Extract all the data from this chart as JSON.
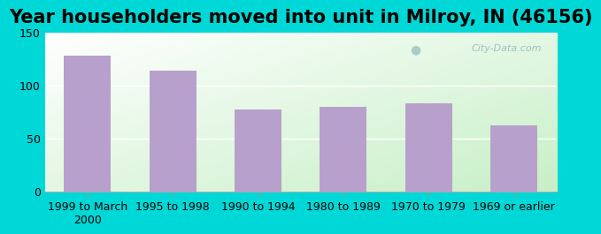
{
  "title": "Year householders moved into unit in Milroy, IN (46156)",
  "categories": [
    "1999 to March\n2000",
    "1995 to 1998",
    "1990 to 1994",
    "1980 to 1989",
    "1970 to 1979",
    "1969 or earlier"
  ],
  "values": [
    128,
    114,
    77,
    80,
    83,
    62
  ],
  "bar_color": "#b8a0cc",
  "ylim": [
    0,
    150
  ],
  "yticks": [
    0,
    50,
    100,
    150
  ],
  "background_outer": "#00d8d8",
  "background_top_left": "#ffffff",
  "background_bottom_right": "#c8eec8",
  "title_fontsize": 15,
  "tick_fontsize": 9,
  "watermark": "City-Data.com"
}
